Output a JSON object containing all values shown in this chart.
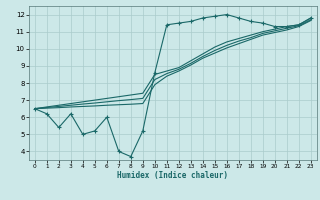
{
  "xlabel": "Humidex (Indice chaleur)",
  "background_color": "#cce8e8",
  "grid_color": "#aacccc",
  "line_color": "#1a6868",
  "xlim": [
    -0.5,
    23.5
  ],
  "ylim": [
    3.5,
    12.5
  ],
  "xticks": [
    0,
    1,
    2,
    3,
    4,
    5,
    6,
    7,
    8,
    9,
    10,
    11,
    12,
    13,
    14,
    15,
    16,
    17,
    18,
    19,
    20,
    21,
    22,
    23
  ],
  "yticks": [
    4,
    5,
    6,
    7,
    8,
    9,
    10,
    11,
    12
  ],
  "line1_x": [
    0,
    1,
    2,
    3,
    4,
    5,
    6,
    7,
    8,
    9,
    10,
    11,
    12,
    13,
    14,
    15,
    16,
    17,
    18,
    19,
    20,
    21,
    22,
    23
  ],
  "line1_y": [
    6.5,
    6.2,
    5.4,
    6.2,
    5.0,
    5.2,
    6.0,
    4.0,
    3.7,
    5.2,
    8.6,
    11.4,
    11.5,
    11.6,
    11.8,
    11.9,
    12.0,
    11.8,
    11.6,
    11.5,
    11.3,
    11.3,
    11.4,
    11.8
  ],
  "line2_x": [
    0,
    1,
    2,
    3,
    4,
    5,
    6,
    7,
    8,
    9,
    10,
    11,
    12,
    13,
    14,
    15,
    16,
    17,
    18,
    19,
    20,
    21,
    22,
    23
  ],
  "line2_y": [
    6.5,
    6.6,
    6.7,
    6.8,
    6.9,
    7.0,
    7.1,
    7.2,
    7.3,
    7.4,
    8.5,
    8.7,
    8.9,
    9.3,
    9.7,
    10.1,
    10.4,
    10.6,
    10.8,
    11.0,
    11.15,
    11.3,
    11.4,
    11.8
  ],
  "line3_x": [
    0,
    1,
    2,
    3,
    4,
    5,
    6,
    7,
    8,
    9,
    10,
    11,
    12,
    13,
    14,
    15,
    16,
    17,
    18,
    19,
    20,
    21,
    22,
    23
  ],
  "line3_y": [
    6.5,
    6.57,
    6.63,
    6.7,
    6.77,
    6.83,
    6.9,
    6.97,
    7.03,
    7.1,
    8.2,
    8.55,
    8.8,
    9.15,
    9.55,
    9.9,
    10.2,
    10.45,
    10.65,
    10.9,
    11.05,
    11.2,
    11.35,
    11.7
  ],
  "line4_x": [
    0,
    1,
    2,
    3,
    4,
    5,
    6,
    7,
    8,
    9,
    10,
    11,
    12,
    13,
    14,
    15,
    16,
    17,
    18,
    19,
    20,
    21,
    22,
    23
  ],
  "line4_y": [
    6.5,
    6.53,
    6.56,
    6.6,
    6.63,
    6.66,
    6.7,
    6.73,
    6.76,
    6.8,
    7.9,
    8.4,
    8.7,
    9.05,
    9.45,
    9.75,
    10.05,
    10.3,
    10.55,
    10.8,
    10.95,
    11.1,
    11.3,
    11.65
  ]
}
